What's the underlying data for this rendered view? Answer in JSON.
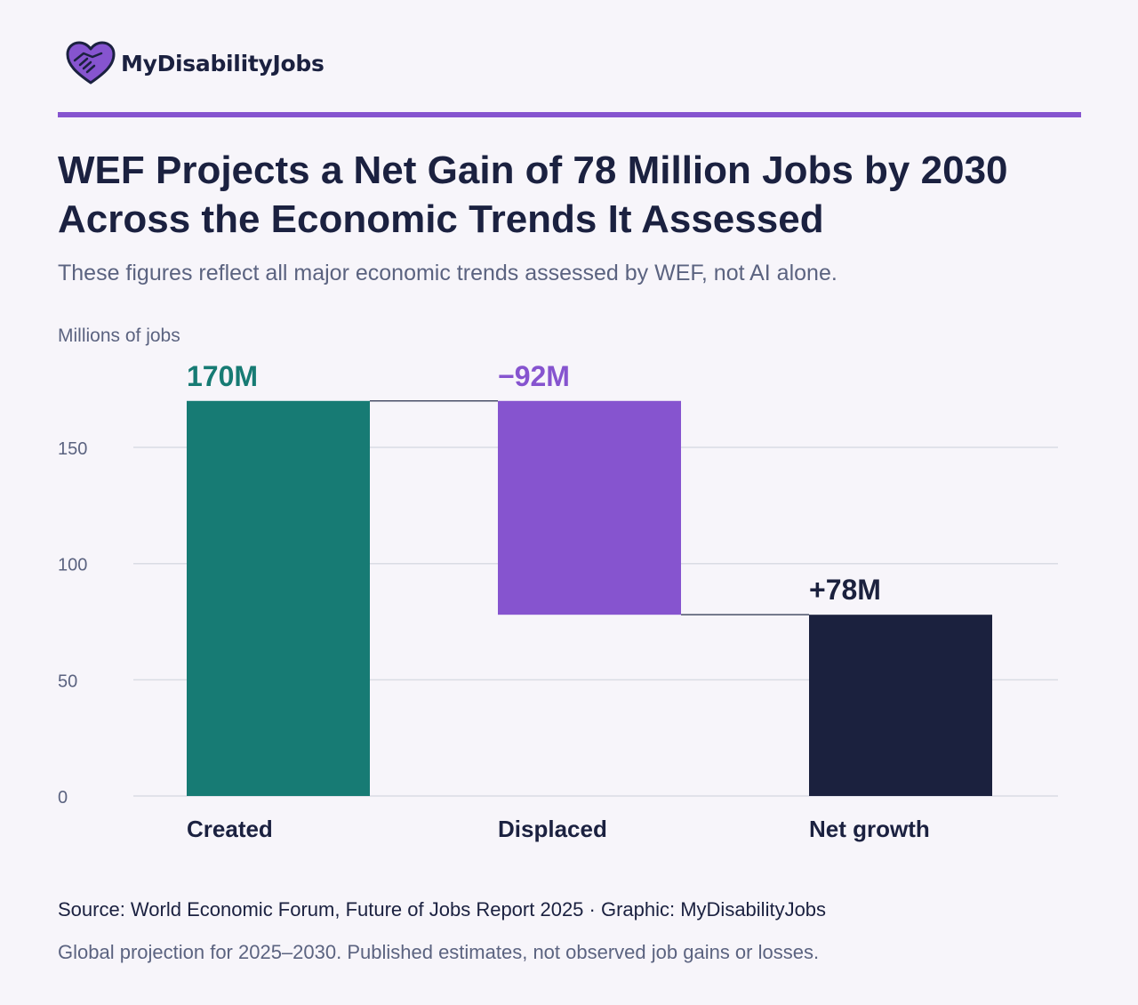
{
  "brand": {
    "name": "MyDisabilityJobs"
  },
  "header": {
    "title": "WEF Projects a Net Gain of 78 Million Jobs by 2030 Across the Economic Trends It Assessed",
    "subtitle": "These figures reflect all major economic trends assessed by WEF, not AI alone."
  },
  "chart_data": {
    "type": "waterfall",
    "ylabel": "Millions of jobs",
    "ylim": [
      0,
      170
    ],
    "yticks": [
      0,
      50,
      100,
      150
    ],
    "grid": true,
    "categories": [
      "Created",
      "Displaced",
      "Net growth"
    ],
    "bars": [
      {
        "category": "Created",
        "start": 0,
        "end": 170,
        "label": "170M",
        "color": "#177b74"
      },
      {
        "category": "Displaced",
        "start": 78,
        "end": 170,
        "label": "−92M",
        "color": "#8654cf"
      },
      {
        "category": "Net growth",
        "start": 0,
        "end": 78,
        "label": "+78M",
        "color": "#1b213e"
      }
    ],
    "colors": {
      "grid": "#dadce4",
      "connector": "#4a5068",
      "tick": "#5b6380",
      "category": "#1b2140"
    }
  },
  "footer": {
    "source": "Source: World Economic Forum, Future of Jobs Report 2025 · Graphic: MyDisabilityJobs",
    "note": "Global projection for 2025–2030. Published estimates, not observed job gains or losses."
  }
}
